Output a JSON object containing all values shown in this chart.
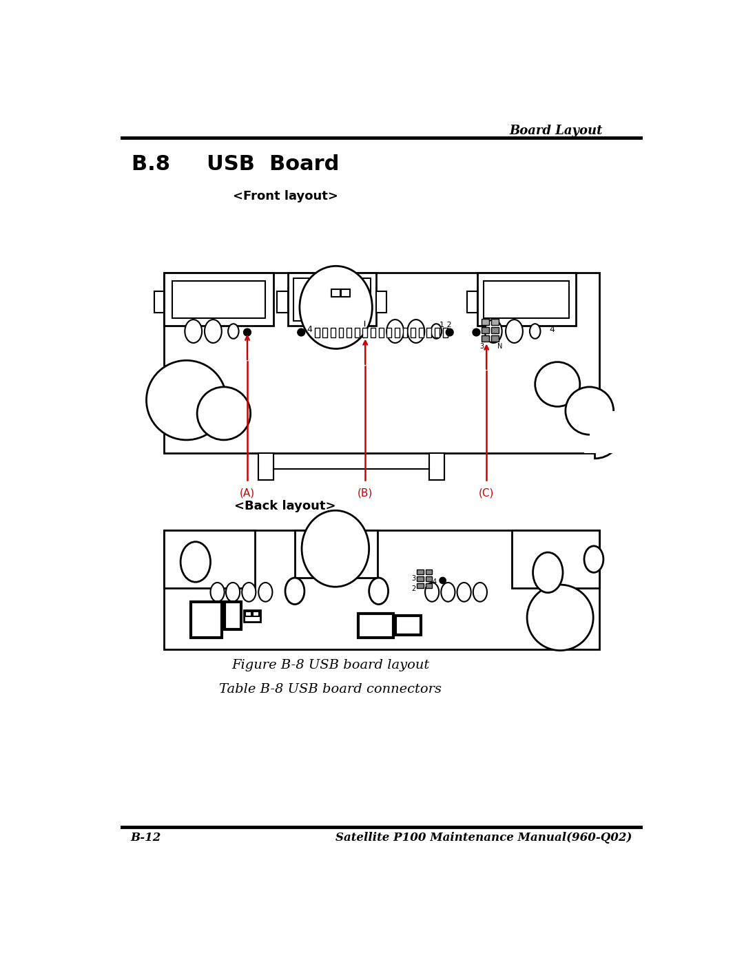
{
  "page_title": "Board Layout",
  "section_title": "B.8     USB  Board",
  "front_label": "<Front layout>",
  "back_label": "<Back layout>",
  "figure_caption": "Figure B-8 USB board layout",
  "table_caption": "Table B-8 USB board connectors",
  "footer_left": "B-12",
  "footer_right": "Satellite P100 Maintenance Manual(960-Q02)",
  "connector_A": "(A)",
  "connector_B": "(B)",
  "connector_C": "(C)",
  "bg_color": "#ffffff",
  "line_color": "#000000",
  "red_color": "#cc0000"
}
